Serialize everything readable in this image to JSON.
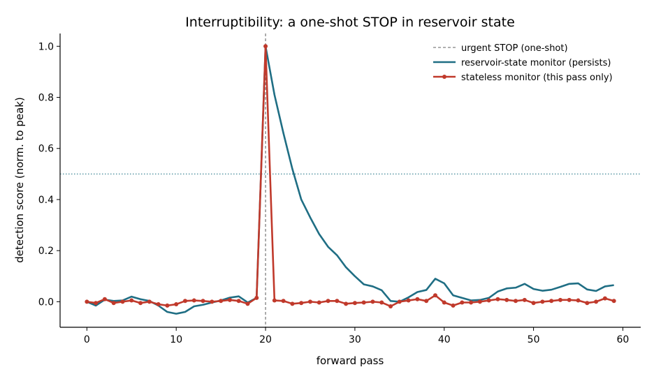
{
  "chart_data": {
    "type": "line",
    "title": "Interruptibility: a one-shot STOP in reservoir state",
    "xlabel": "forward pass",
    "ylabel": "detection score (norm. to peak)",
    "xlim": [
      -3,
      62
    ],
    "ylim": [
      -0.1,
      1.05
    ],
    "xticks": [
      "0",
      "10",
      "20",
      "30",
      "40",
      "50",
      "60"
    ],
    "yticks": [
      "0.0",
      "0.2",
      "0.4",
      "0.6",
      "0.8",
      "1.0"
    ],
    "grid": false,
    "legend_position": "top-right",
    "stop_marker": {
      "x": 20,
      "label": "urgent STOP (one-shot)",
      "color": "#808080"
    },
    "threshold": {
      "y": 0.5,
      "color": "#2a7a8c"
    },
    "series": [
      {
        "name": "reservoir-state monitor (persists)",
        "color": "#1f6e84",
        "x": [
          0,
          1,
          2,
          3,
          4,
          5,
          6,
          7,
          8,
          9,
          10,
          11,
          12,
          13,
          14,
          15,
          16,
          17,
          18,
          19,
          20,
          21,
          22,
          23,
          24,
          25,
          26,
          27,
          28,
          29,
          30,
          31,
          32,
          33,
          34,
          35,
          36,
          37,
          38,
          39,
          40,
          41,
          42,
          43,
          44,
          45,
          46,
          47,
          48,
          49,
          50,
          51,
          52,
          53,
          54,
          55,
          56,
          57,
          58,
          59
        ],
        "values": [
          0.0,
          -0.015,
          0.008,
          0.003,
          0.005,
          0.02,
          0.01,
          0.003,
          -0.015,
          -0.04,
          -0.047,
          -0.04,
          -0.018,
          -0.012,
          -0.003,
          0.005,
          0.016,
          0.021,
          -0.003,
          0.015,
          1.0,
          0.81,
          0.66,
          0.52,
          0.4,
          0.33,
          0.265,
          0.215,
          0.182,
          0.135,
          0.1,
          0.068,
          0.06,
          0.045,
          0.003,
          0.0,
          0.017,
          0.038,
          0.046,
          0.09,
          0.072,
          0.025,
          0.015,
          0.005,
          0.007,
          0.015,
          0.04,
          0.052,
          0.055,
          0.07,
          0.05,
          0.043,
          0.047,
          0.058,
          0.07,
          0.072,
          0.048,
          0.042,
          0.06,
          0.065
        ]
      },
      {
        "name": "stateless monitor (this pass only)",
        "color": "#c0392b",
        "x": [
          0,
          1,
          2,
          3,
          4,
          5,
          6,
          7,
          8,
          9,
          10,
          11,
          12,
          13,
          14,
          15,
          16,
          17,
          18,
          19,
          20,
          21,
          22,
          23,
          24,
          25,
          26,
          27,
          28,
          29,
          30,
          31,
          32,
          33,
          34,
          35,
          36,
          37,
          38,
          39,
          40,
          41,
          42,
          43,
          44,
          45,
          46,
          47,
          48,
          49,
          50,
          51,
          52,
          53,
          54,
          55,
          56,
          57,
          58,
          59
        ],
        "values": [
          0.0,
          -0.005,
          0.01,
          -0.005,
          0.0,
          0.005,
          -0.005,
          0.0,
          -0.01,
          -0.015,
          -0.01,
          0.003,
          0.005,
          0.003,
          0.0,
          0.003,
          0.007,
          0.003,
          -0.008,
          0.015,
          1.0,
          0.005,
          0.003,
          -0.008,
          -0.005,
          0.0,
          -0.003,
          0.003,
          0.003,
          -0.008,
          -0.005,
          -0.003,
          0.0,
          -0.003,
          -0.018,
          0.0,
          0.005,
          0.01,
          0.003,
          0.025,
          -0.003,
          -0.015,
          -0.003,
          -0.003,
          0.0,
          0.005,
          0.01,
          0.007,
          0.003,
          0.007,
          -0.005,
          0.0,
          0.003,
          0.007,
          0.007,
          0.005,
          -0.005,
          0.0,
          0.013,
          0.003
        ]
      }
    ]
  }
}
